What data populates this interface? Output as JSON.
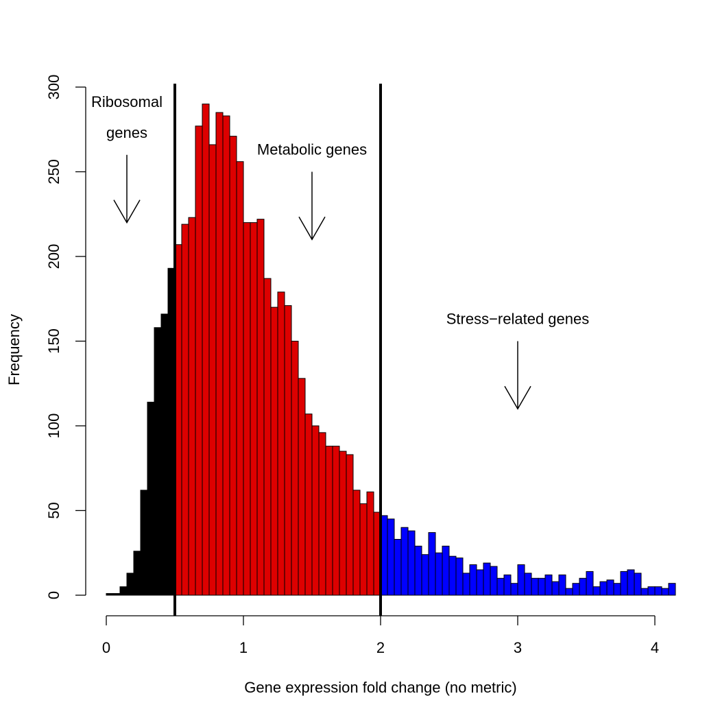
{
  "chart_data": {
    "type": "bar",
    "title": "",
    "xlabel": "Gene expression fold change (no metric)",
    "ylabel": "Frequency",
    "xlim": [
      0,
      4.15
    ],
    "ylim": [
      0,
      300
    ],
    "bin_width": 0.05,
    "bin_start": 0,
    "x_ticks": [
      0,
      1,
      2,
      3,
      4
    ],
    "y_ticks": [
      0,
      50,
      100,
      150,
      200,
      250,
      300
    ],
    "grid": false,
    "thresholds": [
      0.5,
      2
    ],
    "series": [
      {
        "name": "Ribosomal genes",
        "color": "#000000",
        "x_start": 0,
        "values": [
          1,
          1,
          5,
          13,
          26,
          62,
          114,
          158,
          166,
          193
        ]
      },
      {
        "name": "Metabolic genes",
        "color": "#dd0000",
        "x_start": 0.5,
        "values": [
          207,
          219,
          223,
          277,
          290,
          266,
          285,
          283,
          271,
          256,
          220,
          220,
          222,
          187,
          170,
          179,
          171,
          150,
          128,
          107,
          100,
          96,
          88,
          88,
          85,
          83,
          62,
          54,
          61,
          49
        ]
      },
      {
        "name": "Stress-related genes",
        "color": "#0000ff",
        "x_start": 2,
        "values": [
          47,
          45,
          33,
          40,
          38,
          29,
          24,
          37,
          25,
          29,
          23,
          22,
          13,
          18,
          15,
          19,
          17,
          10,
          12,
          7,
          18,
          13,
          10,
          10,
          12,
          8,
          12,
          4,
          7,
          10,
          14,
          5,
          8,
          9,
          7,
          14,
          15,
          13,
          4,
          5,
          5,
          4,
          7
        ]
      }
    ],
    "annotations": [
      {
        "lines": [
          "Ribosomal",
          "genes"
        ],
        "x": 0.15,
        "arrow_from": 260,
        "arrow_to": 220
      },
      {
        "lines": [
          "Metabolic genes"
        ],
        "x": 1.5,
        "arrow_from": 250,
        "arrow_to": 210
      },
      {
        "lines": [
          "Stress−related genes"
        ],
        "x": 3.0,
        "arrow_from": 150,
        "arrow_to": 110
      }
    ]
  }
}
